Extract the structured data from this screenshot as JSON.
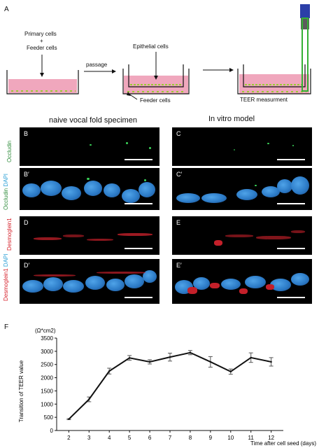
{
  "schematic": {
    "panel_label": "A",
    "primary_cells": "Primary cells",
    "plus": "+",
    "feeder_cells_top": "Feeder cells",
    "passage": "passage",
    "epithelial_cells": "Epithelial cells",
    "feeder_cells_bottom": "Feeder cells",
    "teer": "TEER measurment"
  },
  "micrographs": {
    "col_left_title": "naive vocal fold specimen",
    "col_right_title": "In vitro model",
    "panels": [
      "B",
      "C",
      "B′",
      "C′",
      "D",
      "E",
      "D′",
      "E′"
    ],
    "row_labels": {
      "occludin": "Occludin",
      "dapi": "DAPI",
      "desmoglein": "Desmoglein1"
    },
    "colors": {
      "occludin": "#2e8b3a",
      "dapi": "#2a9fd6",
      "desmoglein": "#d6202a"
    }
  },
  "chart_panel_label": "F",
  "chart_data": {
    "type": "line",
    "unit_label": "(Ω*cm2)",
    "ylabel": "Transition of TEER value",
    "xlabel": "Time after cell seed (days)",
    "x": [
      2,
      3,
      4,
      5,
      6,
      7,
      8,
      9,
      10,
      11,
      12
    ],
    "y": [
      430,
      1180,
      2250,
      2750,
      2600,
      2780,
      2950,
      2600,
      2230,
      2760,
      2600
    ],
    "err": [
      20,
      90,
      110,
      90,
      80,
      150,
      80,
      200,
      100,
      180,
      160
    ],
    "xlim": [
      1.4,
      12.6
    ],
    "ylim": [
      0,
      3500
    ],
    "yticks": [
      0,
      500,
      1000,
      1500,
      2000,
      2500,
      3000,
      3500
    ],
    "xticks": [
      2,
      3,
      4,
      5,
      6,
      7,
      8,
      9,
      10,
      11,
      12
    ],
    "grid": false
  }
}
